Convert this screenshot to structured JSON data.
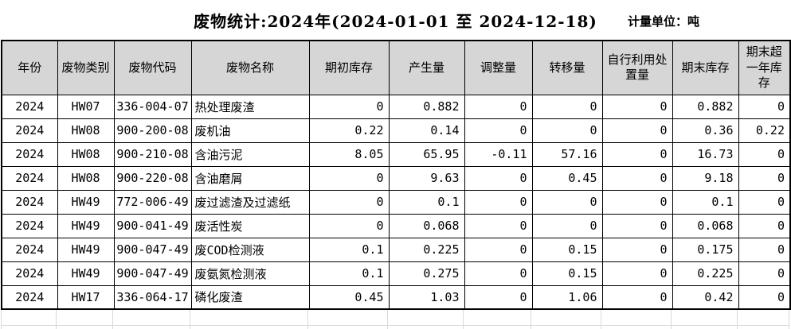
{
  "title": "废物统计:2024年(2024-01-01 至 2024-12-18)",
  "unit_label": "计量单位：吨",
  "colors": {
    "header_bg": "#d6d6d6",
    "table_border": "#000000",
    "sheet_grid": "#d9d9d9"
  },
  "table": {
    "columns": [
      "年份",
      "废物类别",
      "废物代码",
      "废物名称",
      "期初库存",
      "产生量",
      "调整量",
      "转移量",
      "自行利用处置量",
      "期末库存",
      "期末超一年库存"
    ],
    "rows": [
      [
        "2024",
        "HW07",
        "336-004-07",
        "热处理废渣",
        "0",
        "0.882",
        "0",
        "0",
        "0",
        "0.882",
        "0"
      ],
      [
        "2024",
        "HW08",
        "900-200-08",
        "废机油",
        "0.22",
        "0.14",
        "0",
        "0",
        "0",
        "0.36",
        "0.22"
      ],
      [
        "2024",
        "HW08",
        "900-210-08",
        "含油污泥",
        "8.05",
        "65.95",
        "-0.11",
        "57.16",
        "0",
        "16.73",
        "0"
      ],
      [
        "2024",
        "HW08",
        "900-220-08",
        "含油磨屑",
        "0",
        "9.63",
        "0",
        "0.45",
        "0",
        "9.18",
        "0"
      ],
      [
        "2024",
        "HW49",
        "772-006-49",
        "废过滤渣及过滤纸",
        "0",
        "0.1",
        "0",
        "0",
        "0",
        "0.1",
        "0"
      ],
      [
        "2024",
        "HW49",
        "900-041-49",
        "废活性炭",
        "0",
        "0.068",
        "0",
        "0",
        "0",
        "0.068",
        "0"
      ],
      [
        "2024",
        "HW49",
        "900-047-49",
        "废COD检测液",
        "0.1",
        "0.225",
        "0",
        "0.15",
        "0",
        "0.175",
        "0"
      ],
      [
        "2024",
        "HW49",
        "900-047-49",
        "废氨氮检测液",
        "0.1",
        "0.275",
        "0",
        "0.15",
        "0",
        "0.225",
        "0"
      ],
      [
        "2024",
        "HW17",
        "336-064-17",
        "磷化废渣",
        "0.45",
        "1.03",
        "0",
        "1.06",
        "0",
        "0.42",
        "0"
      ]
    ]
  }
}
